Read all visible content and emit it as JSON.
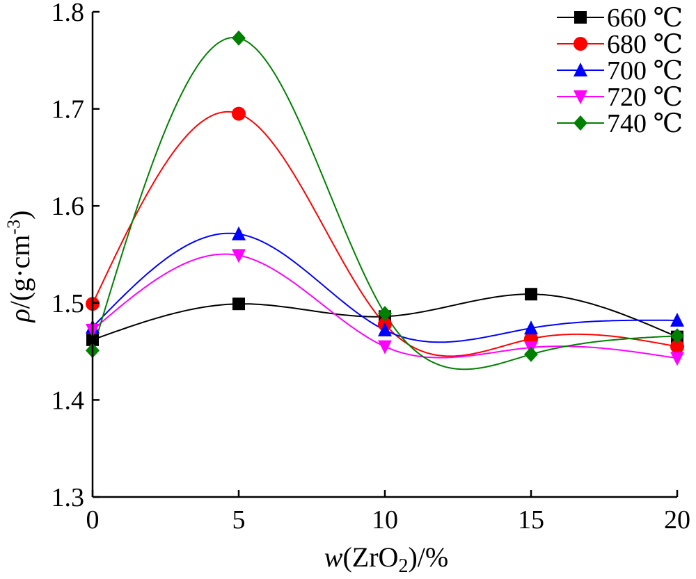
{
  "chart_data": {
    "type": "line",
    "x_tick_labels": [
      "0",
      "5",
      "10",
      "15",
      "20"
    ],
    "y_tick_labels": [
      "1.3",
      "1.4",
      "1.5",
      "1.6",
      "1.7",
      "1.8"
    ],
    "xlim": [
      0,
      20
    ],
    "ylim": [
      1.3,
      1.8
    ],
    "xlabel": {
      "prefix": "w",
      "lp": "(",
      "formula": "ZrO",
      "sub": "2",
      "rest": ")/%"
    },
    "ylabel": {
      "prefix": "ρ",
      "body": "/(g·cm",
      "sup": "-3",
      "close": ")"
    },
    "grid": false,
    "legend_position": "top-right",
    "x": [
      0,
      5,
      10,
      15,
      20
    ],
    "series": [
      {
        "name": "660 ℃",
        "marker": "square",
        "color": "#000000",
        "values": [
          1.462,
          1.499,
          1.486,
          1.509,
          1.465
        ]
      },
      {
        "name": "680 ℃",
        "marker": "circle",
        "color": "#ff0000",
        "values": [
          1.499,
          1.695,
          1.478,
          1.463,
          1.455
        ]
      },
      {
        "name": "700 ℃",
        "marker": "triangle-up",
        "color": "#0000ff",
        "values": [
          1.475,
          1.571,
          1.472,
          1.474,
          1.482
        ]
      },
      {
        "name": "720 ℃",
        "marker": "triangle-down",
        "color": "#ff00ff",
        "values": [
          1.472,
          1.549,
          1.455,
          1.454,
          1.443
        ]
      },
      {
        "name": "740 ℃",
        "marker": "diamond",
        "color": "#008000",
        "values": [
          1.451,
          1.773,
          1.489,
          1.447,
          1.466
        ]
      }
    ]
  }
}
